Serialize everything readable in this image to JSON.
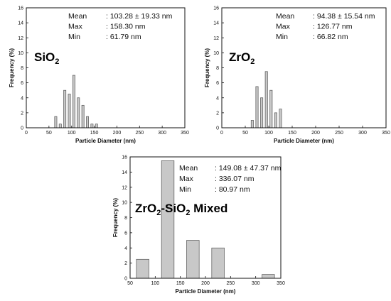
{
  "colors": {
    "bar_fill": "#c8c8c8",
    "bar_stroke": "#555555",
    "axis": "#111111"
  },
  "chart_data": [
    {
      "type": "bar",
      "sample": {
        "base": "SiO",
        "sub": "2",
        "tail": ""
      },
      "stats": [
        {
          "label": "Mean",
          "value": ": 103.28 ± 19.33 nm"
        },
        {
          "label": "Max",
          "value": ": 158.30 nm"
        },
        {
          "label": "Min",
          "value": ":   61.79 nm"
        }
      ],
      "xlabel": "Particle Diameter (nm)",
      "ylabel": "Frequency (%)",
      "xlim": [
        0,
        350
      ],
      "ylim": [
        0,
        16
      ],
      "xticks": [
        0,
        50,
        100,
        150,
        200,
        250,
        300,
        350
      ],
      "yticks": [
        0,
        2,
        4,
        6,
        8,
        10,
        12,
        14,
        16
      ],
      "bin_width": 5,
      "x": [
        65,
        75,
        85,
        95,
        105,
        115,
        125,
        135,
        145,
        155
      ],
      "values": [
        1.5,
        0.5,
        5.0,
        4.5,
        7.0,
        4.0,
        3.0,
        1.5,
        0.5,
        0.5
      ]
    },
    {
      "type": "bar",
      "sample": {
        "base": "ZrO",
        "sub": "2",
        "tail": ""
      },
      "stats": [
        {
          "label": "Mean",
          "value": ": 94.38 ± 15.54 nm"
        },
        {
          "label": "Max",
          "value": ": 126.77 nm"
        },
        {
          "label": "Min",
          "value": ":   66.82 nm"
        }
      ],
      "xlabel": "Particle Diameter (nm)",
      "ylabel": "Frequency (%)",
      "xlim": [
        0,
        350
      ],
      "ylim": [
        0,
        16
      ],
      "xticks": [
        0,
        50,
        100,
        150,
        200,
        250,
        300,
        350
      ],
      "yticks": [
        0,
        2,
        4,
        6,
        8,
        10,
        12,
        14,
        16
      ],
      "bin_width": 5,
      "x": [
        65,
        75,
        85,
        95,
        105,
        115,
        125
      ],
      "values": [
        1.0,
        5.5,
        4.0,
        7.5,
        5.0,
        2.0,
        2.5
      ]
    },
    {
      "type": "bar",
      "sample": {
        "base": "ZrO",
        "sub": "2",
        "tail": "-SiO",
        "sub2": "2",
        "tail2": " Mixed"
      },
      "stats": [
        {
          "label": "Mean",
          "value": ": 149.08 ± 47.37 nm"
        },
        {
          "label": "Max",
          "value": ": 336.07 nm"
        },
        {
          "label": "Min",
          "value": ":  80.97 nm"
        }
      ],
      "xlabel": "Particle Diameter (nm)",
      "ylabel": "Frequency (%)",
      "xlim": [
        50,
        350
      ],
      "ylim": [
        0,
        16
      ],
      "xticks": [
        50,
        100,
        150,
        200,
        250,
        300,
        350
      ],
      "yticks": [
        0,
        2,
        4,
        6,
        8,
        10,
        12,
        14,
        16
      ],
      "bin_width": 25,
      "x": [
        75,
        125,
        175,
        225,
        275,
        325
      ],
      "values": [
        2.5,
        15.5,
        5.0,
        4.0,
        0,
        0.5
      ]
    }
  ]
}
